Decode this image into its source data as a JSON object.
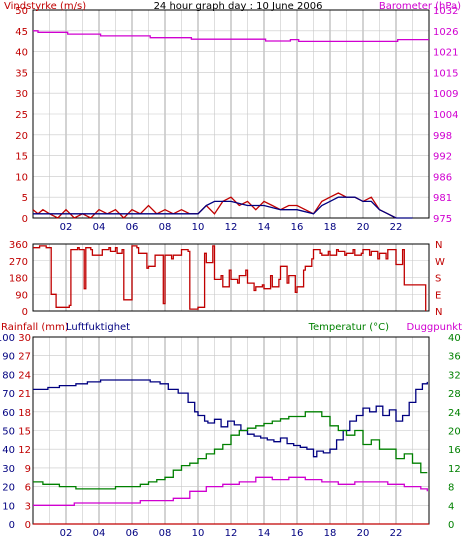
{
  "title": "24 hour graph day : 10 June 2006",
  "colors": {
    "frame": "#000000",
    "grid": "#c8c8c8",
    "wind": "#c00000",
    "barometer": "#d000d0",
    "rainfall": "#c00000",
    "humidity": "#000080",
    "temperature": "#008000",
    "dewpoint": "#d000d0",
    "direction": "#c00000"
  },
  "chart_data": [
    {
      "type": "line",
      "title": "24 hour graph day : 10 June 2006",
      "x_ticks": [
        "02",
        "04",
        "06",
        "08",
        "10",
        "12",
        "14",
        "16",
        "18",
        "20",
        "22"
      ],
      "xlim": [
        0,
        24
      ],
      "left_axis": {
        "label": "Vindstyrke (m/s)",
        "ylim": [
          0,
          50
        ],
        "ticks": [
          "0",
          "5",
          "10",
          "15",
          "20",
          "25",
          "30",
          "35",
          "40",
          "45",
          "50"
        ]
      },
      "right_axis": {
        "label": "Barometer (hPa)",
        "ylim": [
          975,
          1032
        ],
        "ticks": [
          "975",
          "981",
          "986",
          "992",
          "998",
          "1004",
          "1009",
          "1015",
          "1021",
          "1026",
          "1032"
        ]
      },
      "series": [
        {
          "name": "wind_gust",
          "color_key": "wind",
          "axis": "left",
          "x": [
            0,
            0.3,
            0.6,
            1,
            1.5,
            2,
            2.5,
            3,
            3.5,
            4,
            4.5,
            5,
            5.5,
            6,
            6.5,
            7,
            7.5,
            8,
            8.5,
            9,
            9.5,
            10,
            10.5,
            11,
            11.5,
            12,
            12.5,
            13,
            13.5,
            14,
            14.5,
            15,
            15.5,
            16,
            16.5,
            17,
            17.5,
            18,
            18.5,
            19,
            19.5,
            20,
            20.5,
            21,
            21.5,
            22
          ],
          "y": [
            2,
            1,
            2,
            1,
            0,
            2,
            0,
            1,
            0,
            2,
            1,
            2,
            0,
            2,
            1,
            3,
            1,
            2,
            1,
            2,
            1,
            1,
            3,
            1,
            4,
            5,
            3,
            4,
            2,
            4,
            3,
            2,
            3,
            3,
            2,
            1,
            4,
            5,
            6,
            5,
            5,
            4,
            5,
            2,
            1,
            0
          ]
        },
        {
          "name": "wind_average",
          "color_key": "humidity",
          "axis": "left",
          "x": [
            0,
            1,
            2,
            3,
            4,
            5,
            6,
            7,
            8,
            9,
            10,
            10.5,
            11,
            11.5,
            12,
            13,
            14,
            15,
            16,
            17,
            17.5,
            18,
            18.5,
            19,
            19.5,
            20,
            20.5,
            21,
            21.5,
            22,
            23
          ],
          "y": [
            1,
            1,
            1,
            1,
            1,
            1,
            1,
            1,
            1,
            1,
            1,
            3,
            4,
            4,
            4,
            3,
            3,
            2,
            2,
            1,
            3,
            4,
            5,
            5,
            5,
            4,
            4,
            2,
            1,
            0,
            0
          ]
        },
        {
          "name": "barometer",
          "color_key": "barometer",
          "axis": "right",
          "x": [
            0,
            0.3,
            2,
            2.1,
            4,
            4.1,
            7,
            7.1,
            9.5,
            9.6,
            14,
            14.1,
            15.5,
            15.6,
            16,
            16.1,
            17,
            17.1,
            22,
            22.1,
            24
          ],
          "y": [
            1026.3,
            1025.9,
            1025.9,
            1025.4,
            1025.4,
            1024.9,
            1024.9,
            1024.4,
            1024.4,
            1024.0,
            1024.0,
            1023.5,
            1023.5,
            1023.9,
            1023.9,
            1023.4,
            1023.4,
            1023.4,
            1023.4,
            1023.9,
            1023.9
          ]
        }
      ]
    },
    {
      "type": "line",
      "xlim": [
        0,
        24
      ],
      "left_axis": {
        "ylim": [
          0,
          360
        ],
        "ticks": [
          "0",
          "90",
          "180",
          "270",
          "360"
        ]
      },
      "right_axis": {
        "ticks": [
          "N",
          "E",
          "S",
          "W",
          "N"
        ]
      },
      "series": [
        {
          "name": "wind_direction",
          "color_key": "direction",
          "axis": "left",
          "x": [
            0,
            0.4,
            0.8,
            1.1,
            1.4,
            1.5,
            2.2,
            2.3,
            2.7,
            2.8,
            3.1,
            3.2,
            3.5,
            3.6,
            4.2,
            4.3,
            4.6,
            4.7,
            5.0,
            5.1,
            5.4,
            5.5,
            5.9,
            6.0,
            6.3,
            6.4,
            6.9,
            7.0,
            7.4,
            7.5,
            7.9,
            8.0,
            8.4,
            8.5,
            8.9,
            9.0,
            9.4,
            9.5,
            9.9,
            10.0,
            10.4,
            10.5,
            10.9,
            11.0,
            11.4,
            11.5,
            11.9,
            12.0,
            12.4,
            12.5,
            12.9,
            13.0,
            13.4,
            13.5,
            13.9,
            14.0,
            14.4,
            14.5,
            14.9,
            15.0,
            15.4,
            15.5,
            15.9,
            16.0,
            16.4,
            16.5,
            16.9,
            17.0,
            17.4,
            17.5,
            17.9,
            18.0,
            18.4,
            18.5,
            18.9,
            19.0,
            19.4,
            19.5,
            19.9,
            20.0,
            20.4,
            20.5,
            20.9,
            21.0,
            21.4,
            21.5,
            21.9,
            22.0,
            22.4,
            22.5,
            22.9,
            23.0,
            23.4,
            23.8
          ],
          "y": [
            340,
            350,
            340,
            90,
            20,
            20,
            30,
            330,
            340,
            330,
            120,
            340,
            330,
            300,
            330,
            330,
            340,
            320,
            340,
            310,
            330,
            60,
            60,
            350,
            340,
            310,
            230,
            240,
            300,
            300,
            40,
            300,
            280,
            300,
            300,
            330,
            320,
            10,
            10,
            20,
            310,
            260,
            350,
            170,
            190,
            130,
            220,
            170,
            150,
            190,
            220,
            150,
            110,
            130,
            140,
            120,
            190,
            130,
            170,
            240,
            150,
            190,
            100,
            130,
            220,
            240,
            280,
            330,
            310,
            300,
            320,
            300,
            330,
            320,
            300,
            310,
            330,
            300,
            310,
            330,
            300,
            320,
            280,
            310,
            280,
            330,
            330,
            250,
            330,
            140,
            140,
            140,
            140,
            0
          ]
        }
      ]
    },
    {
      "type": "line",
      "xlim": [
        0,
        24
      ],
      "legend_labels": [
        "Rainfall (mm)",
        "Luftfuktighet",
        "Temperatur (°C)",
        "Duggpunkt"
      ],
      "axes": {
        "rain": {
          "ticks": [
            "0",
            "3",
            "6",
            "9",
            "12",
            "15",
            "18",
            "21",
            "24",
            "27",
            "30"
          ]
        },
        "humidity": {
          "ylim": [
            0,
            100
          ],
          "ticks": [
            "0",
            "10",
            "20",
            "30",
            "40",
            "50",
            "60",
            "70",
            "80",
            "90",
            "100"
          ]
        },
        "temperature": {
          "ylim": [
            0,
            40
          ],
          "ticks": [
            "0",
            "4",
            "8",
            "12",
            "16",
            "20",
            "24",
            "28",
            "32",
            "36",
            "40"
          ]
        }
      },
      "series": [
        {
          "name": "humidity",
          "color_key": "humidity",
          "axis": "humidity",
          "x": [
            0,
            0.8,
            0.9,
            1.5,
            1.6,
            2.5,
            2.6,
            3.2,
            3.3,
            4.0,
            4.1,
            5.0,
            5.1,
            7.0,
            7.1,
            7.6,
            7.7,
            8.0,
            8.2,
            8.6,
            8.8,
            9.2,
            9.4,
            9.8,
            10.0,
            10.4,
            10.6,
            11.0,
            11.4,
            11.8,
            12.2,
            12.6,
            13.0,
            13.4,
            13.8,
            14.2,
            14.6,
            15.0,
            15.4,
            15.8,
            16.2,
            16.6,
            17.0,
            17.2,
            17.6,
            18.0,
            18.4,
            18.8,
            19.2,
            19.6,
            20.0,
            20.4,
            20.8,
            21.2,
            21.6,
            22.0,
            22.4,
            22.8,
            23.2,
            23.6,
            23.9
          ],
          "y": [
            72,
            72,
            73,
            73,
            74,
            74,
            75,
            75,
            76,
            76,
            77,
            77,
            77,
            77,
            76,
            76,
            75,
            75,
            72,
            72,
            70,
            70,
            65,
            60,
            58,
            55,
            54,
            56,
            52,
            55,
            53,
            50,
            48,
            47,
            46,
            45,
            44,
            46,
            43,
            42,
            41,
            40,
            36,
            39,
            38,
            40,
            45,
            50,
            55,
            58,
            62,
            60,
            63,
            58,
            61,
            55,
            58,
            65,
            72,
            75,
            76
          ],
          "steps": true
        },
        {
          "name": "temperature",
          "color_key": "temperature",
          "axis": "temperature",
          "x": [
            0,
            0.6,
            1,
            1.6,
            2,
            2.6,
            3,
            3.6,
            4,
            5,
            5.5,
            6,
            6.5,
            7,
            7.5,
            8,
            8.5,
            9,
            9.5,
            10,
            10.5,
            11,
            11.5,
            12,
            12.5,
            13,
            13.5,
            14,
            14.5,
            15,
            15.5,
            16,
            16.5,
            17,
            17.5,
            18,
            18.5,
            19,
            19.5,
            20,
            20.5,
            21,
            21.5,
            22,
            22.5,
            23,
            23.5,
            23.9
          ],
          "y": [
            9,
            8.5,
            8.5,
            8,
            8,
            7.5,
            7.5,
            7.5,
            7.5,
            8,
            8,
            8,
            8.5,
            9,
            9.5,
            10,
            11.5,
            12.5,
            13,
            14,
            15,
            16,
            17,
            19,
            20,
            20.5,
            21,
            21.5,
            22,
            22.5,
            23,
            23,
            24,
            24,
            23,
            21,
            20,
            19,
            20,
            17,
            18,
            16,
            16,
            14,
            15,
            13,
            11,
            11
          ],
          "steps": true
        },
        {
          "name": "dewpoint",
          "color_key": "dewpoint",
          "axis": "temperature",
          "x": [
            0,
            0.8,
            1.5,
            2.5,
            3.5,
            4.5,
            5.5,
            6.5,
            7.5,
            8.5,
            9.5,
            10.5,
            11.5,
            12.5,
            13.5,
            14.5,
            15.5,
            16.5,
            17.5,
            18.5,
            19.5,
            20.5,
            21.5,
            22.5,
            23.5,
            23.9
          ],
          "y": [
            4,
            4,
            4,
            4.5,
            4.5,
            4.5,
            4.5,
            5,
            5,
            5.5,
            7,
            8,
            8.5,
            9,
            10,
            9.5,
            10,
            9.5,
            9,
            8.5,
            9,
            9,
            8.5,
            8,
            7.5,
            7
          ],
          "steps": true
        },
        {
          "name": "rainfall",
          "color_key": "rainfall",
          "axis": "rain",
          "x": [
            0,
            24
          ],
          "y": [
            0,
            0
          ]
        }
      ]
    }
  ]
}
